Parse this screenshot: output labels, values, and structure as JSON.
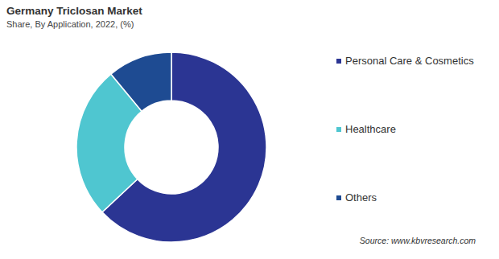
{
  "chart_data": {
    "type": "pie",
    "title": "Germany Triclosan Market",
    "subtitle": "Share, By Application, 2022, (%)",
    "categories": [
      "Personal Care & Cosmetics",
      "Healthcare",
      "Others"
    ],
    "values": [
      63,
      26,
      11
    ],
    "colors": [
      "#2b3593",
      "#4fc6d0",
      "#1e4b92"
    ],
    "legend": "right",
    "annotations": [
      "Source: www.kbvresearch.com"
    ]
  }
}
